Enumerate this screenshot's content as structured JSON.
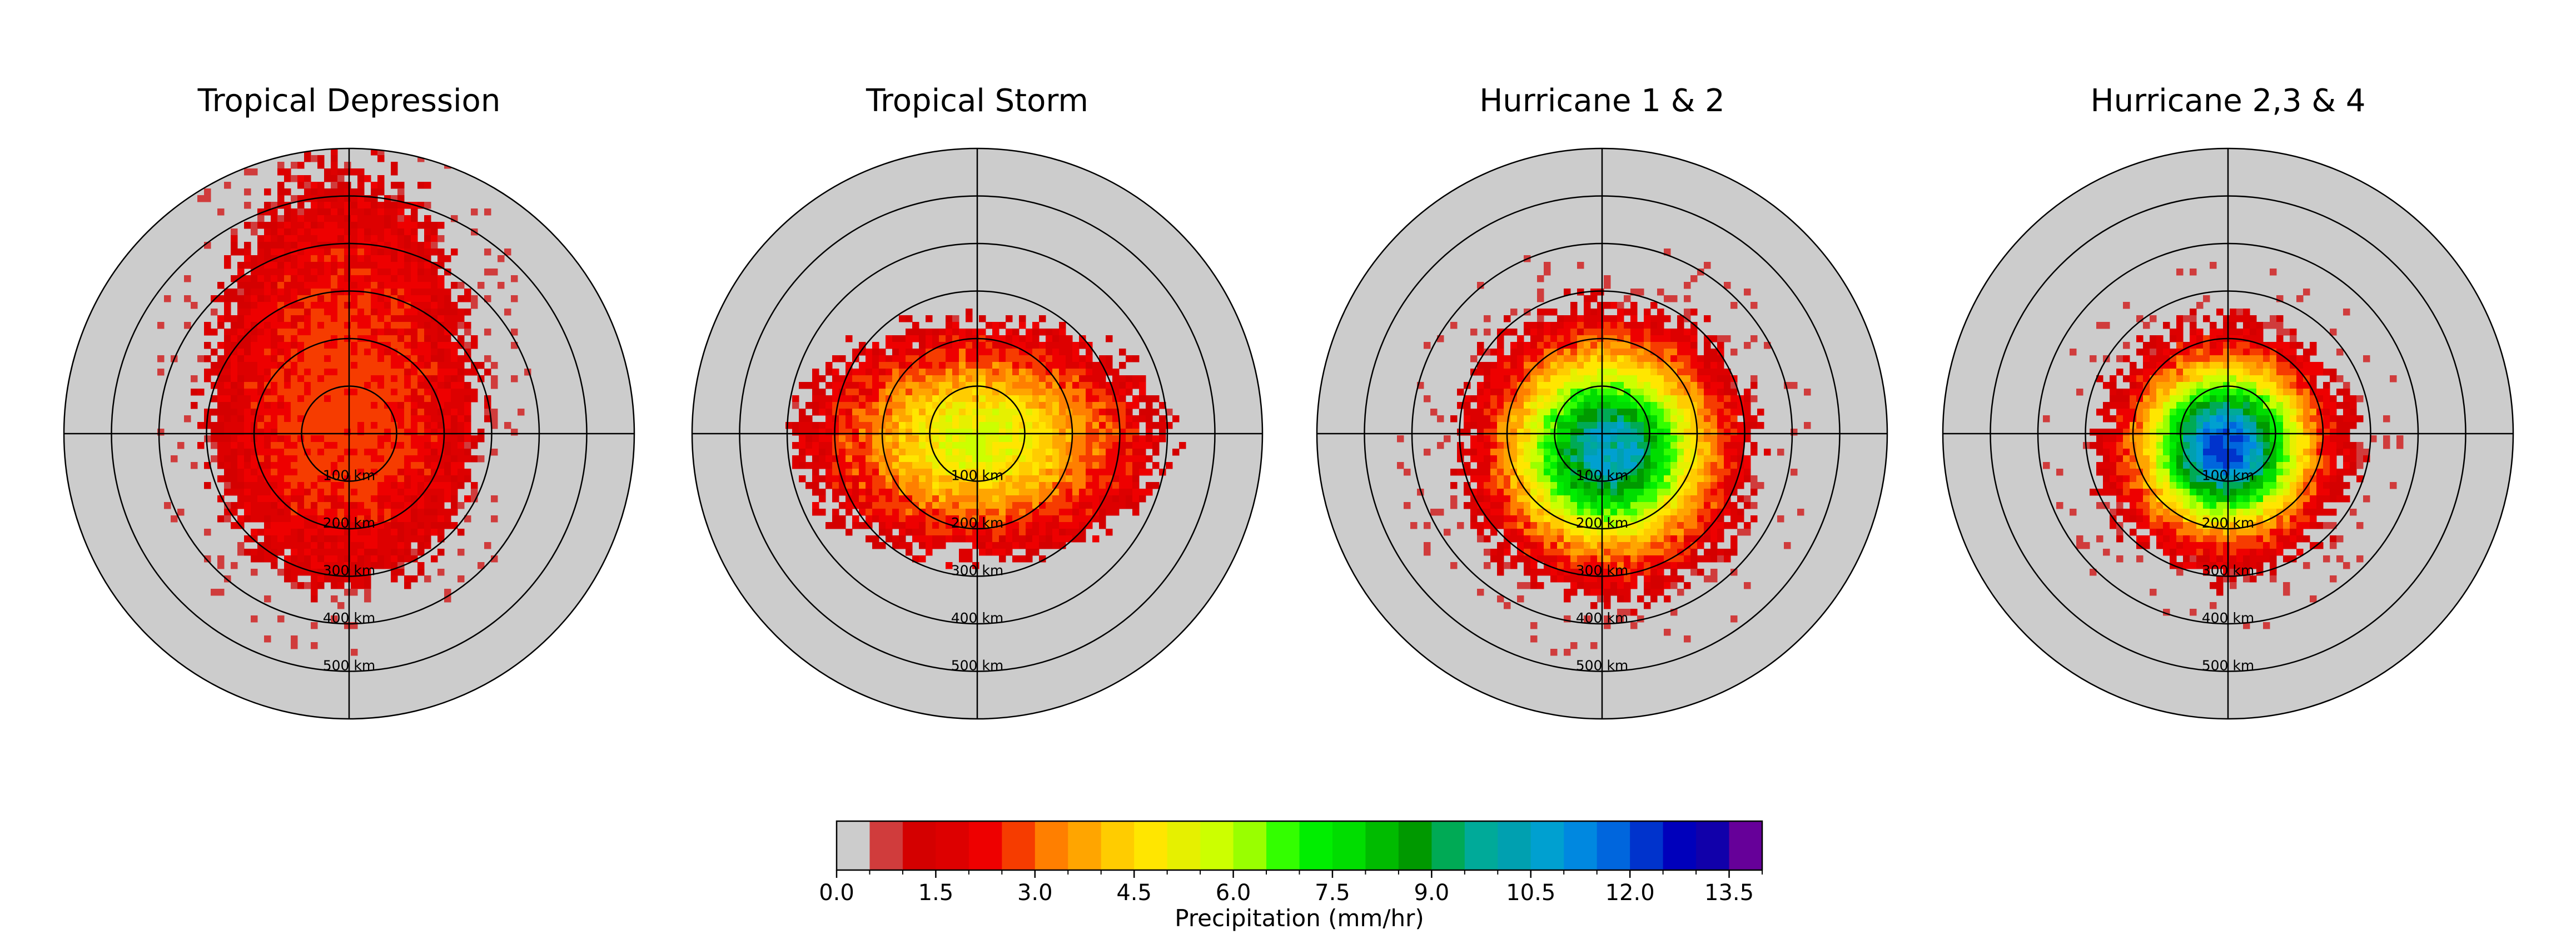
{
  "chart_data": {
    "type": "heatmap",
    "projection": "polar",
    "panels": [
      {
        "title": "Tropical Depression",
        "core_rain_rate_mm_hr": 2.0,
        "max_rain_rate_mm_hr": 2.8,
        "rain_extent_km": 300,
        "rain_shape": "irregular, extends far to the north",
        "scattered_cells": true
      },
      {
        "title": "Tropical Storm",
        "core_rain_rate_mm_hr": 4.5,
        "max_rain_rate_mm_hr": 5.5,
        "rain_extent_km": 310,
        "rain_shape": "elongated west to east",
        "scattered_cells": false
      },
      {
        "title": "Hurricane 1 & 2",
        "core_rain_rate_mm_hr": 9.5,
        "max_rain_rate_mm_hr": 10.5,
        "rain_extent_km": 330,
        "rain_shape": "roughly circular",
        "scattered_cells": true
      },
      {
        "title": "Hurricane 2,3 & 4",
        "core_rain_rate_mm_hr": 11.5,
        "max_rain_rate_mm_hr": 12.0,
        "rain_extent_km": 300,
        "rain_shape": "compact, circular core",
        "scattered_cells": true
      }
    ],
    "radial_rings_km": [
      100,
      200,
      300,
      400,
      500
    ],
    "radial_ring_labels": [
      "100 km",
      "200 km",
      "300 km",
      "400 km",
      "500 km"
    ],
    "max_radius_km": 600,
    "background_color": "#cccccc",
    "colorbar": {
      "label": "Precipitation (mm/hr)",
      "min": 0.0,
      "max": 14.0,
      "bin_width": 0.5,
      "tick_values": [
        0.0,
        1.5,
        3.0,
        4.5,
        6.0,
        7.5,
        9.0,
        10.5,
        12.0,
        13.5
      ],
      "tick_labels": [
        "0.0",
        "1.5",
        "3.0",
        "4.5",
        "6.0",
        "7.5",
        "9.0",
        "10.5",
        "12.0",
        "13.5"
      ],
      "colors": [
        "#cccccc",
        "#d03c3c",
        "#d40000",
        "#dd0000",
        "#ee0000",
        "#f63c00",
        "#ff7f00",
        "#ffa500",
        "#ffcc00",
        "#ffe600",
        "#e6f000",
        "#ccff00",
        "#99ff00",
        "#33ff00",
        "#00ee00",
        "#00dd00",
        "#00bb00",
        "#009900",
        "#00aa55",
        "#00aa99",
        "#00a0b0",
        "#00a0d0",
        "#0088e0",
        "#0066dd",
        "#0033cc",
        "#0000bb",
        "#1100aa",
        "#660099",
        "#770088",
        "#550066"
      ]
    }
  }
}
